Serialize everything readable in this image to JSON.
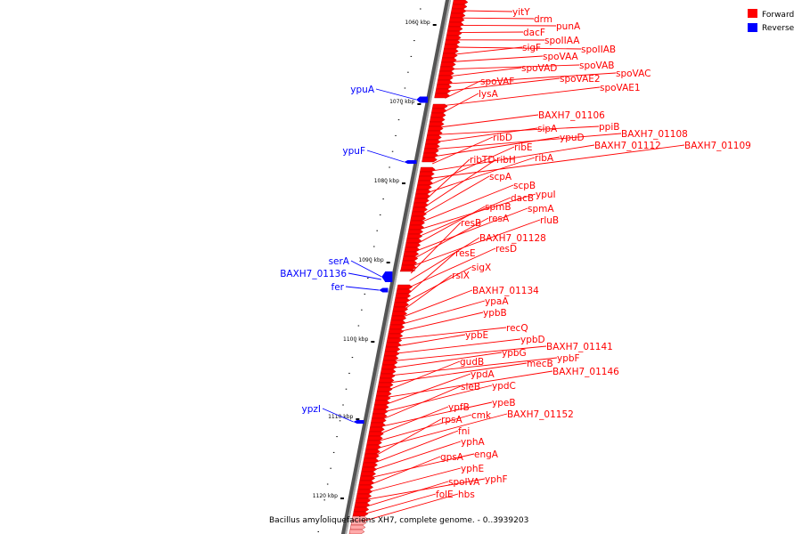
{
  "legend": {
    "forward": {
      "label": "Forward",
      "color": "#ff0000"
    },
    "reverse": {
      "label": "Reverse",
      "color": "#0000ff"
    }
  },
  "caption": "Bacillus amyloliquefaciens XH7, complete genome. - 0..3939203",
  "ticks": [
    "1060 kbp",
    "1070 kbp",
    "1080 kbp",
    "1090 kbp",
    "1100 kbp",
    "1110 kbp",
    "1120 kbp"
  ],
  "forward_genes": [
    "yitY",
    "drm",
    "punA",
    "dacF",
    "spoIIAA",
    "spoIIAB",
    "sigF",
    "spoVAA",
    "spoVAB",
    "spoVAD",
    "spoVAC",
    "spoVAE2",
    "spoVAF",
    "spoVAE1",
    "lysA",
    "BAXH7_01106",
    "ppiB",
    "sipA",
    "BAXH7_01108",
    "ypuD",
    "ribD",
    "BAXH7_01112",
    "BAXH7_01109",
    "ribE",
    "ribA",
    "ribTD",
    "ribH",
    "scpA",
    "scpB",
    "ypuI",
    "dacB",
    "spmB",
    "spmA",
    "resA",
    "rluB",
    "resB",
    "BAXH7_01128",
    "resD",
    "resE",
    "sigX",
    "rsiX",
    "BAXH7_01134",
    "ypaA",
    "ypbB",
    "recQ",
    "ypbE",
    "ypbD",
    "BAXH7_01141",
    "ypbG",
    "ypbF",
    "mecB",
    "gudB",
    "BAXH7_01146",
    "ypdA",
    "ypdC",
    "sleB",
    "ypeB",
    "ypfB",
    "cmk",
    "BAXH7_01152",
    "rpsA",
    "fni",
    "yphA",
    "engA",
    "gpsA",
    "yphE",
    "yphF",
    "spoIVA",
    "folE",
    "hbs"
  ],
  "reverse_genes": [
    "ypuA",
    "ypuF",
    "serA",
    "BAXH7_01136",
    "fer",
    "ypzI"
  ]
}
